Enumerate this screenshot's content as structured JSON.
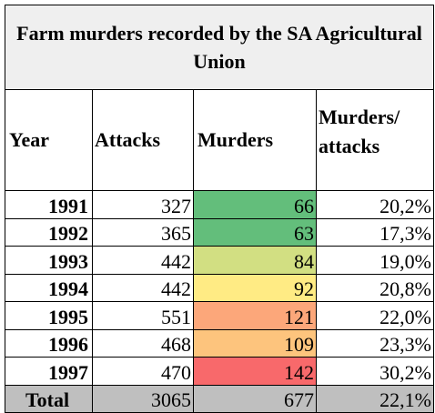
{
  "title": "Farm murders recorded by the SA Agricultural Union",
  "headers": {
    "year": "Year",
    "attacks": "Attacks",
    "murders": "Murders",
    "ratio": "Murders/ attacks"
  },
  "rows": [
    {
      "year": "1991",
      "attacks": "327",
      "murders": "66",
      "ratio": "20,2%",
      "color": "#63be7b"
    },
    {
      "year": "1992",
      "attacks": "365",
      "murders": "63",
      "ratio": "17,3%",
      "color": "#63be7b"
    },
    {
      "year": "1993",
      "attacks": "442",
      "murders": "84",
      "ratio": "19,0%",
      "color": "#d2df82"
    },
    {
      "year": "1994",
      "attacks": "442",
      "murders": "92",
      "ratio": "20,8%",
      "color": "#ffeb84"
    },
    {
      "year": "1995",
      "attacks": "551",
      "murders": "121",
      "ratio": "22,0%",
      "color": "#fca77a"
    },
    {
      "year": "1996",
      "attacks": "468",
      "murders": "109",
      "ratio": "23,3%",
      "color": "#fdc47d"
    },
    {
      "year": "1997",
      "attacks": "470",
      "murders": "142",
      "ratio": "30,2%",
      "color": "#f8696b"
    }
  ],
  "total": {
    "label": "Total",
    "attacks": "3065",
    "murders": "677",
    "ratio": "22,1%"
  }
}
